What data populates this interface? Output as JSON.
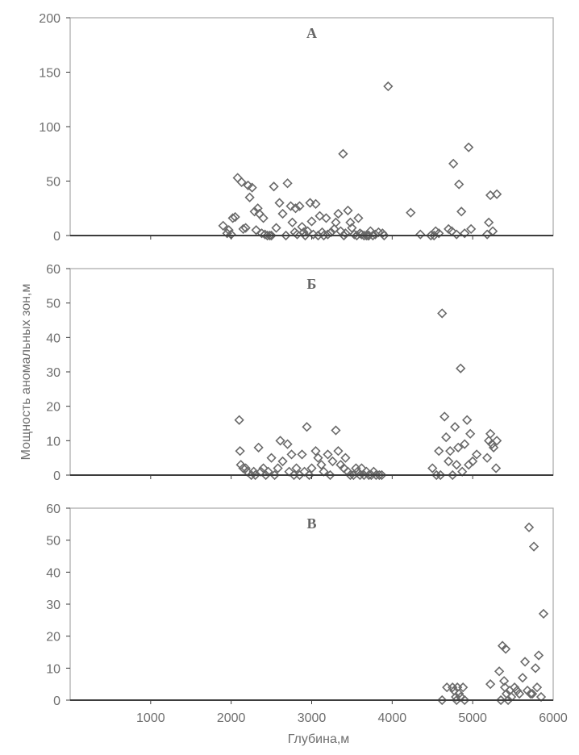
{
  "chart_data": [
    {
      "type": "scatter",
      "title": "А",
      "ylim": [
        0,
        200
      ],
      "yticks": [
        0,
        50,
        100,
        150,
        200
      ],
      "xlim": [
        0,
        6000
      ],
      "marker": "diamond",
      "x": [
        1900,
        1950,
        1970,
        2000,
        2020,
        2050,
        2080,
        2130,
        2150,
        2180,
        2210,
        2230,
        2260,
        2290,
        2310,
        2330,
        2350,
        2380,
        2400,
        2420,
        2450,
        2480,
        2500,
        2530,
        2560,
        2600,
        2640,
        2680,
        2700,
        2740,
        2760,
        2790,
        2800,
        2820,
        2850,
        2880,
        2900,
        2920,
        2950,
        2980,
        3000,
        3020,
        3050,
        3080,
        3100,
        3130,
        3150,
        3180,
        3200,
        3240,
        3280,
        3300,
        3330,
        3360,
        3390,
        3400,
        3420,
        3450,
        3480,
        3500,
        3530,
        3560,
        3580,
        3600,
        3620,
        3650,
        3680,
        3700,
        3710,
        3730,
        3760,
        3790,
        3830,
        3880,
        3900,
        3950,
        4230,
        4350,
        4480,
        4520,
        4540,
        4580,
        4700,
        4740,
        4760,
        4800,
        4830,
        4860,
        4900,
        4950,
        4980,
        5180,
        5200,
        5220,
        5250,
        5300
      ],
      "y": [
        9,
        2,
        5,
        1,
        16,
        17,
        53,
        49,
        6,
        7,
        46,
        35,
        44,
        22,
        5,
        25,
        20,
        2,
        16,
        1,
        0,
        0,
        0,
        45,
        7,
        30,
        20,
        0,
        48,
        27,
        12,
        3,
        25,
        1,
        27,
        8,
        3,
        0,
        4,
        30,
        13,
        1,
        29,
        0,
        18,
        3,
        0,
        16,
        1,
        3,
        6,
        12,
        20,
        4,
        75,
        0,
        2,
        23,
        12,
        7,
        1,
        0,
        16,
        2,
        1,
        0,
        0,
        0,
        0,
        4,
        0,
        1,
        3,
        2,
        0,
        137,
        21,
        1,
        0,
        0,
        4,
        2,
        6,
        4,
        66,
        1,
        47,
        22,
        2,
        81,
        6,
        1,
        12,
        37,
        4,
        38
      ],
      "xlabel": "",
      "ylabel": ""
    },
    {
      "type": "scatter",
      "title": "Б",
      "ylim": [
        0,
        60
      ],
      "yticks": [
        0,
        10,
        20,
        30,
        40,
        50,
        60
      ],
      "xlim": [
        0,
        6000
      ],
      "marker": "diamond",
      "x": [
        2100,
        2110,
        2120,
        2150,
        2180,
        2200,
        2250,
        2280,
        2300,
        2340,
        2370,
        2400,
        2430,
        2460,
        2500,
        2540,
        2580,
        2610,
        2640,
        2700,
        2720,
        2750,
        2780,
        2810,
        2850,
        2880,
        2910,
        2940,
        2970,
        3000,
        3050,
        3080,
        3120,
        3150,
        3200,
        3230,
        3260,
        3300,
        3330,
        3360,
        3400,
        3420,
        3450,
        3480,
        3520,
        3550,
        3570,
        3600,
        3620,
        3650,
        3680,
        3710,
        3740,
        3770,
        3800,
        3840,
        3870,
        4500,
        4550,
        4580,
        4600,
        4620,
        4650,
        4670,
        4700,
        4720,
        4750,
        4780,
        4800,
        4820,
        4850,
        4870,
        4900,
        4930,
        4950,
        4970,
        5000,
        5050,
        5180,
        5200,
        5220,
        5240,
        5260,
        5290,
        5300
      ],
      "y": [
        16,
        7,
        3,
        2,
        2,
        1,
        0,
        1,
        0,
        8,
        1,
        2,
        0,
        1,
        5,
        0,
        2,
        10,
        4,
        9,
        1,
        6,
        0,
        2,
        0,
        6,
        1,
        14,
        0,
        2,
        7,
        5,
        3,
        1,
        6,
        0,
        4,
        13,
        7,
        3,
        2,
        5,
        1,
        0,
        0,
        2,
        1,
        0,
        2,
        0,
        1,
        0,
        0,
        1,
        0,
        0,
        0,
        2,
        0,
        7,
        0,
        47,
        17,
        11,
        4,
        7,
        0,
        14,
        3,
        8,
        31,
        1,
        9,
        16,
        3,
        12,
        4,
        6,
        5,
        10,
        12,
        9,
        8,
        2,
        10
      ],
      "xlabel": "",
      "ylabel": "Мощность аномальных зон,м"
    },
    {
      "type": "scatter",
      "title": "В",
      "ylim": [
        0,
        60
      ],
      "yticks": [
        0,
        10,
        20,
        30,
        40,
        50,
        60
      ],
      "xlim": [
        0,
        6000
      ],
      "xticks": [
        1000,
        2000,
        3000,
        4000,
        5000,
        6000
      ],
      "marker": "diamond",
      "x": [
        4620,
        4680,
        4750,
        4770,
        4790,
        4800,
        4810,
        4830,
        4850,
        4880,
        4900,
        5220,
        5330,
        5350,
        5370,
        5390,
        5400,
        5410,
        5420,
        5440,
        5460,
        5480,
        5520,
        5550,
        5580,
        5620,
        5650,
        5680,
        5700,
        5720,
        5740,
        5760,
        5780,
        5800,
        5820,
        5850,
        5880
      ],
      "y": [
        0,
        4,
        4,
        3,
        1,
        0,
        4,
        2,
        1,
        4,
        0,
        5,
        9,
        0,
        17,
        6,
        4,
        16,
        2,
        0,
        3,
        1,
        4,
        3,
        2,
        7,
        12,
        3,
        54,
        2,
        2,
        48,
        10,
        4,
        14,
        1,
        27
      ],
      "xlabel": "Глубина,м",
      "ylabel": ""
    }
  ],
  "colors": {
    "marker_stroke": "#6a6a6a",
    "axis": "#3c3c3c",
    "frame": "#a6a6a6",
    "text": "#6e6e6e"
  }
}
